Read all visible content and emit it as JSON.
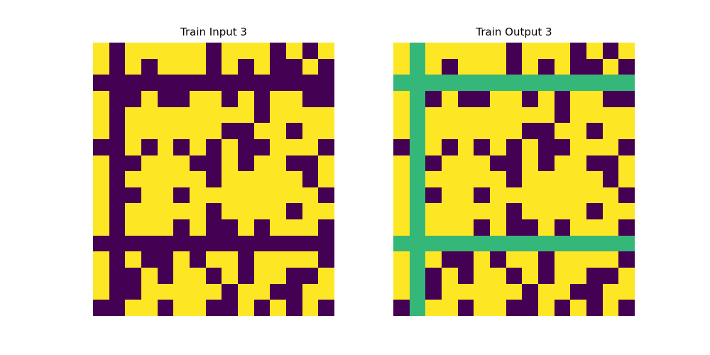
{
  "colors": {
    "0": "#440154",
    "1": "#fde725",
    "2": "#35b779"
  },
  "panels": [
    {
      "title": "Train Input 3",
      "grid": [
        [
          1,
          0,
          1,
          1,
          1,
          1,
          1,
          0,
          1,
          1,
          1,
          0,
          1,
          0,
          1
        ],
        [
          1,
          0,
          1,
          0,
          1,
          1,
          1,
          0,
          1,
          0,
          1,
          0,
          0,
          1,
          0
        ],
        [
          0,
          0,
          0,
          0,
          0,
          0,
          0,
          0,
          0,
          0,
          0,
          0,
          0,
          0,
          0
        ],
        [
          1,
          0,
          0,
          1,
          0,
          0,
          1,
          1,
          0,
          1,
          0,
          1,
          1,
          0,
          0
        ],
        [
          1,
          0,
          1,
          1,
          1,
          1,
          1,
          1,
          1,
          1,
          0,
          1,
          1,
          1,
          1
        ],
        [
          1,
          0,
          1,
          1,
          1,
          1,
          1,
          1,
          0,
          0,
          1,
          1,
          0,
          1,
          1
        ],
        [
          0,
          0,
          1,
          0,
          1,
          0,
          1,
          0,
          1,
          0,
          0,
          1,
          1,
          1,
          0
        ],
        [
          1,
          0,
          0,
          1,
          1,
          1,
          0,
          0,
          1,
          0,
          1,
          1,
          0,
          0,
          1
        ],
        [
          1,
          0,
          1,
          1,
          1,
          1,
          1,
          0,
          1,
          1,
          1,
          1,
          1,
          0,
          1
        ],
        [
          1,
          0,
          0,
          1,
          1,
          0,
          1,
          1,
          1,
          1,
          1,
          1,
          1,
          1,
          0
        ],
        [
          1,
          0,
          1,
          1,
          1,
          1,
          1,
          0,
          1,
          1,
          1,
          1,
          0,
          1,
          1
        ],
        [
          1,
          0,
          1,
          1,
          1,
          0,
          1,
          0,
          0,
          1,
          0,
          1,
          1,
          1,
          0
        ],
        [
          0,
          0,
          0,
          0,
          0,
          0,
          0,
          0,
          0,
          0,
          0,
          0,
          0,
          0,
          0
        ],
        [
          1,
          0,
          1,
          0,
          0,
          1,
          0,
          1,
          1,
          0,
          1,
          1,
          1,
          1,
          0
        ],
        [
          1,
          0,
          0,
          1,
          0,
          1,
          1,
          0,
          1,
          0,
          1,
          1,
          0,
          0,
          1
        ],
        [
          1,
          0,
          0,
          1,
          1,
          1,
          1,
          1,
          0,
          1,
          1,
          0,
          0,
          1,
          1
        ],
        [
          0,
          0,
          1,
          1,
          0,
          1,
          1,
          0,
          0,
          1,
          0,
          1,
          0,
          1,
          0
        ]
      ]
    },
    {
      "title": "Train Output 3",
      "grid": [
        [
          1,
          2,
          1,
          1,
          1,
          1,
          1,
          0,
          1,
          1,
          1,
          0,
          1,
          0,
          1
        ],
        [
          1,
          2,
          1,
          0,
          1,
          1,
          1,
          0,
          1,
          0,
          1,
          0,
          0,
          1,
          0
        ],
        [
          2,
          2,
          2,
          2,
          2,
          2,
          2,
          2,
          2,
          2,
          2,
          2,
          2,
          2,
          2
        ],
        [
          1,
          2,
          0,
          1,
          0,
          0,
          1,
          1,
          0,
          1,
          0,
          1,
          1,
          0,
          0
        ],
        [
          1,
          2,
          1,
          1,
          1,
          1,
          1,
          1,
          1,
          1,
          0,
          1,
          1,
          1,
          1
        ],
        [
          1,
          2,
          1,
          1,
          1,
          1,
          1,
          1,
          0,
          0,
          1,
          1,
          0,
          1,
          1
        ],
        [
          0,
          2,
          1,
          0,
          1,
          0,
          1,
          0,
          1,
          0,
          0,
          1,
          1,
          1,
          0
        ],
        [
          1,
          2,
          0,
          1,
          1,
          1,
          0,
          0,
          1,
          0,
          1,
          1,
          0,
          0,
          1
        ],
        [
          1,
          2,
          1,
          1,
          1,
          1,
          1,
          0,
          1,
          1,
          1,
          1,
          1,
          0,
          1
        ],
        [
          1,
          2,
          0,
          1,
          1,
          0,
          1,
          1,
          1,
          1,
          1,
          1,
          1,
          1,
          0
        ],
        [
          1,
          2,
          1,
          1,
          1,
          1,
          1,
          0,
          1,
          1,
          1,
          1,
          0,
          1,
          1
        ],
        [
          1,
          2,
          1,
          1,
          1,
          0,
          1,
          0,
          0,
          1,
          0,
          1,
          1,
          1,
          0
        ],
        [
          2,
          2,
          2,
          2,
          2,
          2,
          2,
          2,
          2,
          2,
          2,
          2,
          2,
          2,
          2
        ],
        [
          1,
          2,
          1,
          0,
          0,
          1,
          0,
          1,
          1,
          0,
          1,
          1,
          1,
          1,
          0
        ],
        [
          1,
          2,
          0,
          1,
          0,
          1,
          1,
          0,
          1,
          0,
          1,
          1,
          0,
          0,
          1
        ],
        [
          1,
          2,
          0,
          1,
          1,
          1,
          1,
          1,
          0,
          1,
          1,
          0,
          0,
          1,
          1
        ],
        [
          0,
          2,
          1,
          1,
          0,
          1,
          1,
          0,
          0,
          1,
          0,
          1,
          0,
          1,
          0
        ]
      ]
    }
  ]
}
